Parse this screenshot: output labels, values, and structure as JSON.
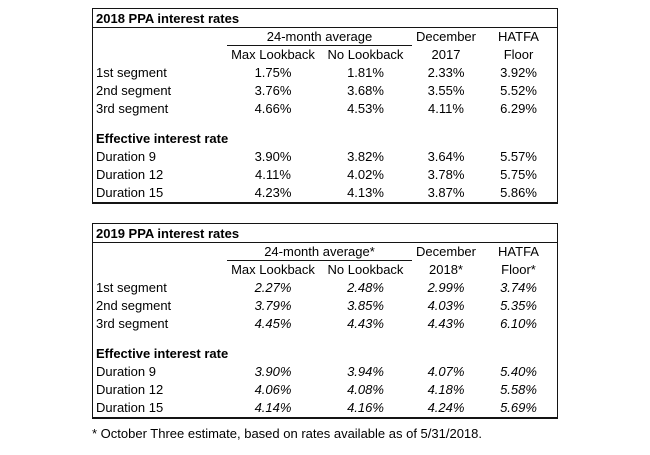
{
  "style": {
    "background": "#ffffff",
    "text_color": "#000000",
    "border_color": "#141414"
  },
  "table_2018": {
    "title": "2018 PPA interest rates",
    "headers": {
      "group": "24-month average",
      "max_lookback": "Max Lookback",
      "no_lookback": "No Lookback",
      "december_top": "December",
      "december_bottom": "2017",
      "hatfa_top": "HATFA",
      "hatfa_bottom": "Floor"
    },
    "segments": [
      {
        "label": "1st segment",
        "max_lookback": "1.75%",
        "no_lookback": "1.81%",
        "december": "2.33%",
        "hatfa_floor": "3.92%"
      },
      {
        "label": "2nd segment",
        "max_lookback": "3.76%",
        "no_lookback": "3.68%",
        "december": "3.55%",
        "hatfa_floor": "5.52%"
      },
      {
        "label": "3rd segment",
        "max_lookback": "4.66%",
        "no_lookback": "4.53%",
        "december": "4.11%",
        "hatfa_floor": "6.29%"
      }
    ],
    "effective_label": "Effective interest rate",
    "durations": [
      {
        "label": "Duration 9",
        "max_lookback": "3.90%",
        "no_lookback": "3.82%",
        "december": "3.64%",
        "hatfa_floor": "5.57%"
      },
      {
        "label": "Duration 12",
        "max_lookback": "4.11%",
        "no_lookback": "4.02%",
        "december": "3.78%",
        "hatfa_floor": "5.75%"
      },
      {
        "label": "Duration 15",
        "max_lookback": "4.23%",
        "no_lookback": "4.13%",
        "december": "3.87%",
        "hatfa_floor": "5.86%"
      }
    ]
  },
  "table_2019": {
    "title": "2019 PPA interest rates",
    "headers": {
      "group": "24-month average*",
      "max_lookback": "Max Lookback",
      "no_lookback": "No Lookback",
      "december_top": "December",
      "december_bottom": "2018*",
      "hatfa_top": "HATFA",
      "hatfa_bottom": "Floor*"
    },
    "segments": [
      {
        "label": "1st segment",
        "max_lookback": "2.27%",
        "no_lookback": "2.48%",
        "december": "2.99%",
        "hatfa_floor": "3.74%"
      },
      {
        "label": "2nd segment",
        "max_lookback": "3.79%",
        "no_lookback": "3.85%",
        "december": "4.03%",
        "hatfa_floor": "5.35%"
      },
      {
        "label": "3rd segment",
        "max_lookback": "4.45%",
        "no_lookback": "4.43%",
        "december": "4.43%",
        "hatfa_floor": "6.10%"
      }
    ],
    "effective_label": "Effective interest rate",
    "durations": [
      {
        "label": "Duration 9",
        "max_lookback": "3.90%",
        "no_lookback": "3.94%",
        "december": "4.07%",
        "hatfa_floor": "5.40%"
      },
      {
        "label": "Duration 12",
        "max_lookback": "4.06%",
        "no_lookback": "4.08%",
        "december": "4.18%",
        "hatfa_floor": "5.58%"
      },
      {
        "label": "Duration 15",
        "max_lookback": "4.14%",
        "no_lookback": "4.16%",
        "december": "4.24%",
        "hatfa_floor": "5.69%"
      }
    ]
  },
  "footnote": "* October Three estimate, based on rates available as of 5/31/2018."
}
